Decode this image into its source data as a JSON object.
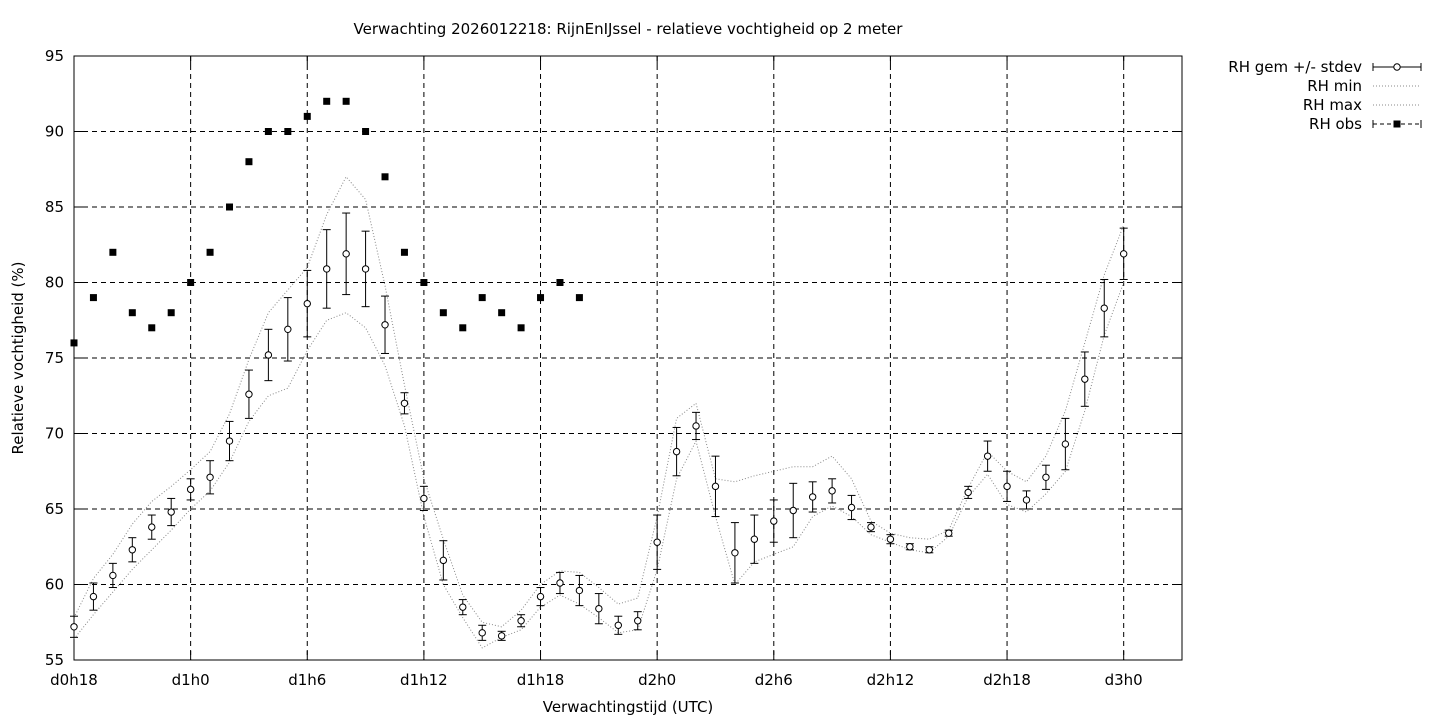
{
  "chart_data": {
    "type": "scatter",
    "title": "Verwachting 2026012218: RijnEnIJssel - relatieve vochtigheid op 2 meter",
    "xlabel": "Verwachtingstijd (UTC)",
    "ylabel": "Relatieve vochtigheid (%)",
    "xlim": [
      18,
      75
    ],
    "ylim": [
      55,
      95
    ],
    "yticks": [
      55,
      60,
      65,
      70,
      75,
      80,
      85,
      90,
      95
    ],
    "xticks": [
      {
        "x": 18,
        "label": "d0h18"
      },
      {
        "x": 24,
        "label": "d1h0"
      },
      {
        "x": 30,
        "label": "d1h6"
      },
      {
        "x": 36,
        "label": "d1h12"
      },
      {
        "x": 42,
        "label": "d1h18"
      },
      {
        "x": 48,
        "label": "d2h0"
      },
      {
        "x": 54,
        "label": "d2h6"
      },
      {
        "x": 60,
        "label": "d2h12"
      },
      {
        "x": 66,
        "label": "d2h18"
      },
      {
        "x": 72,
        "label": "d3h0"
      }
    ],
    "grid": true,
    "legend_position": "outside-top-right",
    "series": [
      {
        "name": "RH gem +/- stdev",
        "x": [
          18,
          19,
          20,
          21,
          22,
          23,
          24,
          25,
          26,
          27,
          28,
          29,
          30,
          31,
          32,
          33,
          34,
          35,
          36,
          37,
          38,
          39,
          40,
          41,
          42,
          43,
          44,
          45,
          46,
          47,
          48,
          49,
          50,
          51,
          52,
          53,
          54,
          55,
          56,
          57,
          58,
          59,
          60,
          61,
          62,
          63,
          64,
          65,
          66,
          67,
          68,
          69,
          70,
          71,
          72
        ],
        "y": [
          57.2,
          59.2,
          60.6,
          62.3,
          63.8,
          64.8,
          66.3,
          67.1,
          69.5,
          72.6,
          75.2,
          76.9,
          78.6,
          80.9,
          81.9,
          80.9,
          77.2,
          72.0,
          65.7,
          61.6,
          58.5,
          56.8,
          56.6,
          57.6,
          59.2,
          60.1,
          59.6,
          58.4,
          57.3,
          57.6,
          62.8,
          68.8,
          70.5,
          66.5,
          62.1,
          63.0,
          64.2,
          64.9,
          65.8,
          66.2,
          65.1,
          63.8,
          63.0,
          62.5,
          62.3,
          63.4,
          66.1,
          68.5,
          66.5,
          65.6,
          67.1,
          69.3,
          73.6,
          78.3,
          81.9
        ],
        "err": [
          0.7,
          0.9,
          0.8,
          0.8,
          0.8,
          0.9,
          0.7,
          1.1,
          1.3,
          1.6,
          1.7,
          2.1,
          2.2,
          2.6,
          2.7,
          2.5,
          1.9,
          0.7,
          0.8,
          1.3,
          0.5,
          0.5,
          0.3,
          0.4,
          0.6,
          0.7,
          1.0,
          1.0,
          0.6,
          0.6,
          1.8,
          1.6,
          0.9,
          2.0,
          2.0,
          1.6,
          1.4,
          1.8,
          1.0,
          0.8,
          0.8,
          0.3,
          0.3,
          0.2,
          0.2,
          0.2,
          0.4,
          1.0,
          1.0,
          0.6,
          0.8,
          1.7,
          1.8,
          1.9,
          1.7
        ]
      },
      {
        "name": "RH min",
        "x": [
          18,
          19,
          20,
          21,
          22,
          23,
          24,
          25,
          26,
          27,
          28,
          29,
          30,
          31,
          32,
          33,
          34,
          35,
          36,
          37,
          38,
          39,
          40,
          41,
          42,
          43,
          44,
          45,
          46,
          47,
          48,
          49,
          50,
          51,
          52,
          53,
          54,
          55,
          56,
          57,
          58,
          59,
          60,
          61,
          62,
          63,
          64,
          65,
          66,
          67,
          68,
          69,
          70,
          71,
          72
        ],
        "y": [
          56.4,
          58.0,
          59.5,
          61.0,
          62.3,
          63.6,
          65.0,
          66.2,
          68.1,
          70.8,
          72.5,
          73.0,
          75.5,
          77.5,
          78.0,
          77.0,
          74.5,
          70.5,
          64.5,
          60.0,
          57.8,
          55.8,
          56.5,
          57.0,
          58.5,
          59.3,
          58.7,
          57.8,
          56.8,
          57.0,
          61.0,
          67.0,
          69.5,
          64.5,
          60.0,
          61.5,
          62.0,
          62.5,
          64.5,
          65.2,
          64.5,
          63.3,
          62.8,
          62.3,
          62.1,
          63.2,
          65.8,
          67.3,
          65.3,
          64.8,
          66.0,
          67.5,
          71.5,
          76.5,
          80.0
        ]
      },
      {
        "name": "RH max",
        "x": [
          18,
          19,
          20,
          21,
          22,
          23,
          24,
          25,
          26,
          27,
          28,
          29,
          30,
          31,
          32,
          33,
          34,
          35,
          36,
          37,
          38,
          39,
          40,
          41,
          42,
          43,
          44,
          45,
          46,
          47,
          48,
          49,
          50,
          51,
          52,
          53,
          54,
          55,
          56,
          57,
          58,
          59,
          60,
          61,
          62,
          63,
          64,
          65,
          66,
          67,
          68,
          69,
          70,
          71,
          72
        ],
        "y": [
          57.8,
          60.4,
          62.0,
          64.0,
          65.5,
          66.5,
          67.6,
          68.8,
          71.3,
          74.9,
          78.0,
          79.5,
          81.0,
          84.5,
          87.0,
          85.5,
          79.8,
          73.2,
          67.0,
          63.0,
          59.3,
          57.5,
          57.2,
          58.3,
          60.0,
          60.9,
          60.8,
          59.8,
          58.7,
          59.1,
          64.5,
          71.0,
          72.0,
          67.0,
          66.8,
          67.2,
          67.5,
          67.8,
          67.8,
          68.5,
          67.0,
          64.2,
          63.4,
          63.1,
          63.0,
          63.6,
          66.4,
          68.8,
          67.5,
          66.8,
          68.5,
          71.5,
          76.0,
          80.5,
          83.8
        ]
      },
      {
        "name": "RH obs",
        "x": [
          18,
          19,
          20,
          21,
          22,
          23,
          24,
          25,
          26,
          27,
          28,
          29,
          30,
          31,
          32,
          33,
          34,
          35,
          36,
          37,
          38,
          39,
          40,
          41,
          42,
          43,
          44
        ],
        "y": [
          76,
          79,
          82,
          78,
          77,
          78,
          80,
          82,
          85,
          88,
          90,
          90,
          91,
          92,
          92,
          90,
          87,
          82,
          80,
          78,
          77,
          79,
          78,
          77,
          79,
          80,
          79
        ]
      }
    ]
  }
}
